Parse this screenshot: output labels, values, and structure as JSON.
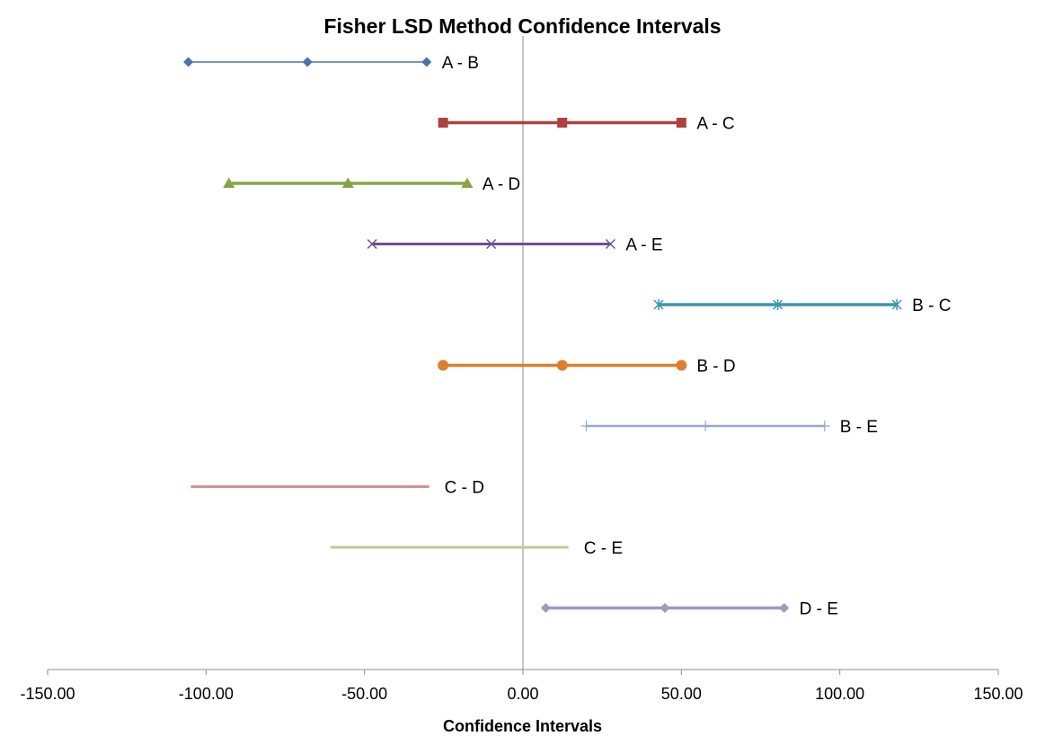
{
  "chart_data": {
    "type": "scatter",
    "title": "Fisher LSD Method Confidence Intervals",
    "xlabel": "Confidence Intervals",
    "ylabel": "",
    "xlim": [
      -150,
      150
    ],
    "x_ticks": [
      -150,
      -100,
      -50,
      0,
      50,
      100,
      150
    ],
    "x_tick_labels": [
      "-150.00",
      "-100.00",
      "-50.00",
      "0.00",
      "50.00",
      "100.00",
      "150.00"
    ],
    "grid": false,
    "legend": "none",
    "series": [
      {
        "name": "A - B",
        "values": [
          -105.6,
          -68.0,
          -30.4
        ],
        "color": "#4a72a8",
        "marker": "diamond",
        "label_color": "#000000"
      },
      {
        "name": "A - C",
        "values": [
          -25.2,
          12.4,
          50.0
        ],
        "color": "#b0413e",
        "marker": "square",
        "label_color": "#000000"
      },
      {
        "name": "A - D",
        "values": [
          -92.8,
          -55.2,
          -17.6
        ],
        "color": "#86a542",
        "marker": "triangle",
        "label_color": "#000000"
      },
      {
        "name": "A - E",
        "values": [
          -47.6,
          -10.0,
          27.6
        ],
        "color": "#6b5090",
        "marker": "x",
        "label_color": "#000000"
      },
      {
        "name": "B - C",
        "values": [
          42.8,
          80.4,
          118.0
        ],
        "color": "#3d95b0",
        "marker": "star",
        "label_color": "#000000"
      },
      {
        "name": "B - D",
        "values": [
          -25.2,
          12.4,
          50.0
        ],
        "color": "#de7f2e",
        "marker": "circle",
        "label_color": "#000000"
      },
      {
        "name": "B - E",
        "values": [
          20.0,
          57.6,
          95.2
        ],
        "color": "#94a9cd",
        "marker": "plus",
        "label_color": "#000000"
      },
      {
        "name": "C - D",
        "values": [
          -104.8,
          -67.2,
          -29.6
        ],
        "color": "#d29291",
        "marker": "none",
        "label_color": "#000000"
      },
      {
        "name": "C - E",
        "values": [
          -60.8,
          -23.2,
          14.4
        ],
        "color": "#b8cf92",
        "marker": "none",
        "label_color": "#000000"
      },
      {
        "name": "D - E",
        "values": [
          7.2,
          44.8,
          82.4
        ],
        "color": "#a895c3",
        "marker": "diamond",
        "label_color": "#000000"
      }
    ]
  }
}
